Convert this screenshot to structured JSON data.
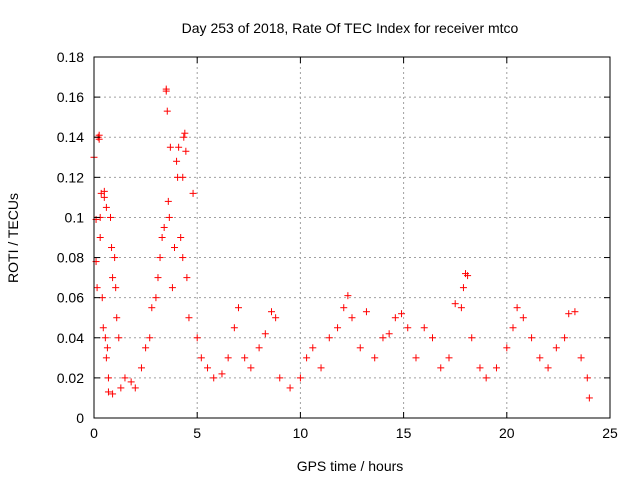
{
  "chart_data": {
    "type": "scatter",
    "title": "Day 253 of 2018, Rate Of TEC Index for receiver mtco",
    "xlabel": "GPS time / hours",
    "ylabel": "ROTI / TECUs",
    "xlim": [
      0,
      25
    ],
    "ylim": [
      0,
      0.18
    ],
    "x_ticks": [
      "0",
      "5",
      "10",
      "15",
      "20",
      "25"
    ],
    "y_ticks": [
      "0",
      "0.02",
      "0.04",
      "0.06",
      "0.08",
      "0.1",
      "0.12",
      "0.14",
      "0.16",
      "0.18"
    ],
    "grid": true,
    "legend": "none",
    "marker": "+",
    "colors": {
      "series": "#ff0000",
      "grid": "#a0a0a0",
      "axis": "#000000"
    },
    "series": [
      {
        "values": [
          [
            0.0,
            0.13
          ],
          [
            0.1,
            0.099
          ],
          [
            0.1,
            0.078
          ],
          [
            0.15,
            0.065
          ],
          [
            0.2,
            0.14
          ],
          [
            0.25,
            0.141
          ],
          [
            0.25,
            0.139
          ],
          [
            0.3,
            0.1
          ],
          [
            0.3,
            0.09
          ],
          [
            0.35,
            0.112
          ],
          [
            0.4,
            0.06
          ],
          [
            0.45,
            0.045
          ],
          [
            0.5,
            0.113
          ],
          [
            0.5,
            0.11
          ],
          [
            0.55,
            0.04
          ],
          [
            0.6,
            0.105
          ],
          [
            0.6,
            0.03
          ],
          [
            0.65,
            0.035
          ],
          [
            0.7,
            0.02
          ],
          [
            0.8,
            0.1
          ],
          [
            0.85,
            0.085
          ],
          [
            0.9,
            0.07
          ],
          [
            1.0,
            0.08
          ],
          [
            1.05,
            0.065
          ],
          [
            1.1,
            0.05
          ],
          [
            1.2,
            0.04
          ],
          [
            0.7,
            0.013
          ],
          [
            0.9,
            0.012
          ],
          [
            1.3,
            0.015
          ],
          [
            1.5,
            0.02
          ],
          [
            1.8,
            0.018
          ],
          [
            2.0,
            0.015
          ],
          [
            2.3,
            0.025
          ],
          [
            2.5,
            0.035
          ],
          [
            2.7,
            0.04
          ],
          [
            2.8,
            0.055
          ],
          [
            3.0,
            0.06
          ],
          [
            3.1,
            0.07
          ],
          [
            3.2,
            0.08
          ],
          [
            3.3,
            0.09
          ],
          [
            3.4,
            0.095
          ],
          [
            3.5,
            0.164
          ],
          [
            3.5,
            0.163
          ],
          [
            3.55,
            0.153
          ],
          [
            3.6,
            0.108
          ],
          [
            3.65,
            0.1
          ],
          [
            3.7,
            0.135
          ],
          [
            3.8,
            0.065
          ],
          [
            3.9,
            0.085
          ],
          [
            4.0,
            0.128
          ],
          [
            4.05,
            0.12
          ],
          [
            4.1,
            0.135
          ],
          [
            4.2,
            0.09
          ],
          [
            4.3,
            0.08
          ],
          [
            4.3,
            0.12
          ],
          [
            4.35,
            0.14
          ],
          [
            4.4,
            0.142
          ],
          [
            4.45,
            0.133
          ],
          [
            4.5,
            0.07
          ],
          [
            4.6,
            0.05
          ],
          [
            4.8,
            0.112
          ],
          [
            5.0,
            0.04
          ],
          [
            5.2,
            0.03
          ],
          [
            5.5,
            0.025
          ],
          [
            5.8,
            0.02
          ],
          [
            6.2,
            0.022
          ],
          [
            6.5,
            0.03
          ],
          [
            6.8,
            0.045
          ],
          [
            7.0,
            0.055
          ],
          [
            7.3,
            0.03
          ],
          [
            7.6,
            0.025
          ],
          [
            8.0,
            0.035
          ],
          [
            8.3,
            0.042
          ],
          [
            8.6,
            0.053
          ],
          [
            8.8,
            0.05
          ],
          [
            9.0,
            0.02
          ],
          [
            9.5,
            0.015
          ],
          [
            10.0,
            0.02
          ],
          [
            10.3,
            0.03
          ],
          [
            10.6,
            0.035
          ],
          [
            11.0,
            0.025
          ],
          [
            11.4,
            0.04
          ],
          [
            11.8,
            0.045
          ],
          [
            12.1,
            0.055
          ],
          [
            12.3,
            0.061
          ],
          [
            12.5,
            0.05
          ],
          [
            12.9,
            0.035
          ],
          [
            13.2,
            0.053
          ],
          [
            13.6,
            0.03
          ],
          [
            14.0,
            0.04
          ],
          [
            14.3,
            0.042
          ],
          [
            14.6,
            0.05
          ],
          [
            14.9,
            0.052
          ],
          [
            15.2,
            0.045
          ],
          [
            15.6,
            0.03
          ],
          [
            16.0,
            0.045
          ],
          [
            16.4,
            0.04
          ],
          [
            16.8,
            0.025
          ],
          [
            17.2,
            0.03
          ],
          [
            17.5,
            0.057
          ],
          [
            17.8,
            0.055
          ],
          [
            17.9,
            0.065
          ],
          [
            18.0,
            0.072
          ],
          [
            18.1,
            0.071
          ],
          [
            18.3,
            0.04
          ],
          [
            18.7,
            0.025
          ],
          [
            19.0,
            0.02
          ],
          [
            19.5,
            0.025
          ],
          [
            20.0,
            0.035
          ],
          [
            20.3,
            0.045
          ],
          [
            20.5,
            0.055
          ],
          [
            20.8,
            0.05
          ],
          [
            21.2,
            0.04
          ],
          [
            21.6,
            0.03
          ],
          [
            22.0,
            0.025
          ],
          [
            22.4,
            0.035
          ],
          [
            22.8,
            0.04
          ],
          [
            23.0,
            0.052
          ],
          [
            23.3,
            0.053
          ],
          [
            23.6,
            0.03
          ],
          [
            23.9,
            0.02
          ],
          [
            24.0,
            0.01
          ]
        ]
      }
    ]
  }
}
